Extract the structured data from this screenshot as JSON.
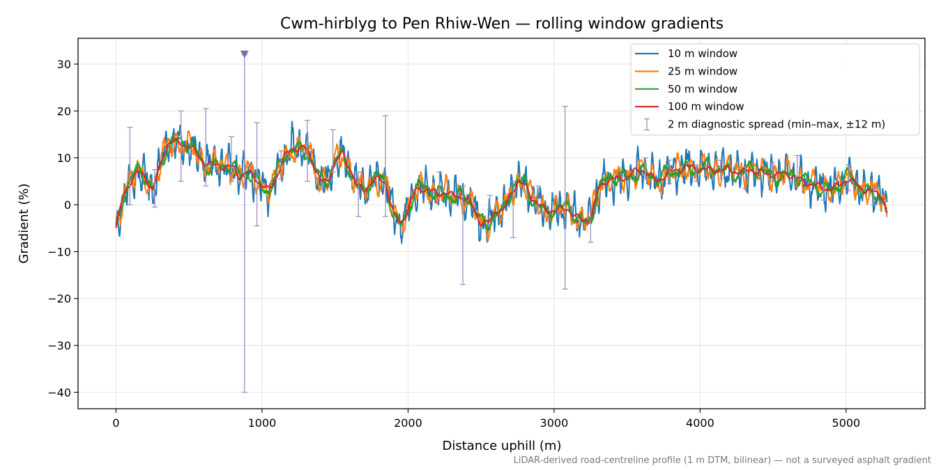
{
  "chart_data": {
    "type": "line",
    "title": "Cwm-hirblyg to Pen Rhiw-Wen — rolling window gradients",
    "xlabel": "Distance uphill (m)",
    "ylabel": "Gradient (%)",
    "xlim": [
      -260,
      5540
    ],
    "ylim": [
      -43.5,
      35.5
    ],
    "xticks": [
      0,
      1000,
      2000,
      3000,
      4000,
      5000
    ],
    "yticks": [
      -40,
      -30,
      -20,
      -10,
      0,
      10,
      20,
      30
    ],
    "xtick_labels": [
      "0",
      "1000",
      "2000",
      "3000",
      "4000",
      "5000"
    ],
    "ytick_labels": [
      "−40",
      "−30",
      "−20",
      "−10",
      "0",
      "10",
      "20",
      "30"
    ],
    "grid": true,
    "legend_position": "top-right",
    "footnote": "LiDAR-derived road-centreline profile (1 m DTM, bilinear) — not a surveyed asphalt gradient",
    "series": [
      {
        "name": "100 m window",
        "color": "#d62728",
        "role": "base",
        "x": [
          0,
          50,
          100,
          150,
          200,
          250,
          300,
          350,
          400,
          450,
          500,
          550,
          600,
          650,
          700,
          750,
          800,
          850,
          900,
          950,
          1000,
          1050,
          1100,
          1150,
          1200,
          1250,
          1300,
          1350,
          1400,
          1450,
          1500,
          1550,
          1600,
          1650,
          1700,
          1750,
          1800,
          1850,
          1900,
          1950,
          2000,
          2050,
          2100,
          2150,
          2200,
          2250,
          2300,
          2350,
          2400,
          2450,
          2500,
          2550,
          2600,
          2650,
          2700,
          2750,
          2800,
          2850,
          2900,
          2950,
          3000,
          3050,
          3100,
          3150,
          3200,
          3250,
          3300,
          3350,
          3400,
          3450,
          3500,
          3550,
          3600,
          3650,
          3700,
          3750,
          3800,
          3850,
          3900,
          3950,
          4000,
          4050,
          4100,
          4150,
          4200,
          4250,
          4300,
          4350,
          4400,
          4450,
          4500,
          4550,
          4600,
          4650,
          4700,
          4750,
          4800,
          4850,
          4900,
          4950,
          5000,
          5050,
          5100,
          5150,
          5200,
          5250,
          5280
        ],
        "values": [
          -5,
          2,
          5,
          7,
          6,
          3,
          8,
          13,
          13.5,
          13,
          12.5,
          11,
          9,
          8.5,
          8.5,
          8,
          8,
          6,
          7,
          6,
          4,
          3,
          6,
          10,
          12,
          12,
          12,
          9,
          5,
          5,
          9,
          11,
          8,
          4,
          3,
          5,
          5.5,
          4.5,
          -2,
          -4,
          -1,
          3,
          3.5,
          3,
          2.5,
          2.5,
          2,
          2,
          1,
          -0.5,
          -4,
          -4,
          -1,
          -1.5,
          2,
          5,
          4,
          1.5,
          0,
          -1.5,
          -1,
          -1,
          -1,
          -2.5,
          -3.5,
          -3,
          3,
          5,
          5.5,
          5.5,
          6,
          7,
          7.5,
          6.5,
          5,
          6,
          7,
          7.5,
          8,
          8,
          7.5,
          7.5,
          7.5,
          7.5,
          7.5,
          7,
          7,
          7.5,
          7,
          6.5,
          6.5,
          6.5,
          6.5,
          6,
          5,
          4.5,
          4,
          3.5,
          3.5,
          4,
          5.5,
          5,
          3.5,
          3,
          2.5,
          2,
          -2
        ]
      },
      {
        "name": "50 m window",
        "color": "#2ca02c",
        "role": "derived",
        "amplitude": 2.0,
        "frequency": 0.045
      },
      {
        "name": "25 m window",
        "color": "#ff7f0e",
        "role": "derived",
        "amplitude": 3.2,
        "frequency": 0.075
      },
      {
        "name": "10 m window",
        "color": "#1f77b4",
        "role": "derived",
        "amplitude": 4.5,
        "frequency": 0.13
      }
    ],
    "legend_order": [
      "10 m window",
      "25 m window",
      "50 m window",
      "100 m window",
      "2 m diagnostic spread (min–max, ±12 m)"
    ],
    "error_bars": {
      "name": "2 m diagnostic spread (min–max, ±12 m)",
      "color": "#9a8fc0",
      "points": [
        {
          "x": 95,
          "low": 0,
          "high": 16.5
        },
        {
          "x": 265,
          "low": -0.5,
          "high": 7.5
        },
        {
          "x": 445,
          "low": 5,
          "high": 20
        },
        {
          "x": 615,
          "low": 4,
          "high": 20.5
        },
        {
          "x": 790,
          "low": 5,
          "high": 14.5
        },
        {
          "x": 880,
          "low": -40,
          "high": 32
        },
        {
          "x": 965,
          "low": -4.5,
          "high": 17.5
        },
        {
          "x": 1130,
          "low": 5.5,
          "high": 11.5
        },
        {
          "x": 1310,
          "low": 5,
          "high": 18
        },
        {
          "x": 1485,
          "low": 7,
          "high": 16
        },
        {
          "x": 1660,
          "low": -2.5,
          "high": 7
        },
        {
          "x": 1845,
          "low": -2.5,
          "high": 19
        },
        {
          "x": 2215,
          "low": 3,
          "high": 7
        },
        {
          "x": 2375,
          "low": -17,
          "high": 4
        },
        {
          "x": 2560,
          "low": -1,
          "high": 2
        },
        {
          "x": 2720,
          "low": -7,
          "high": 5
        },
        {
          "x": 2890,
          "low": -1,
          "high": 4
        },
        {
          "x": 3075,
          "low": -18,
          "high": 21
        },
        {
          "x": 3250,
          "low": -8,
          "high": -0.5
        },
        {
          "x": 3625,
          "low": 5.5,
          "high": 10
        },
        {
          "x": 3790,
          "low": 4.5,
          "high": 9.5
        },
        {
          "x": 3975,
          "low": 5,
          "high": 8.5
        },
        {
          "x": 4140,
          "low": 5.5,
          "high": 9.5
        },
        {
          "x": 4310,
          "low": 3.5,
          "high": 8
        },
        {
          "x": 4495,
          "low": 5,
          "high": 9
        },
        {
          "x": 4665,
          "low": 6,
          "high": 10.5
        },
        {
          "x": 4845,
          "low": 1,
          "high": 4
        },
        {
          "x": 5015,
          "low": 3,
          "high": 8.5
        },
        {
          "x": 5190,
          "low": 0,
          "high": 3.5
        }
      ]
    },
    "marker": {
      "x": 880,
      "y": 32,
      "shape": "triangle-down",
      "color": "#7b6fa6"
    }
  }
}
